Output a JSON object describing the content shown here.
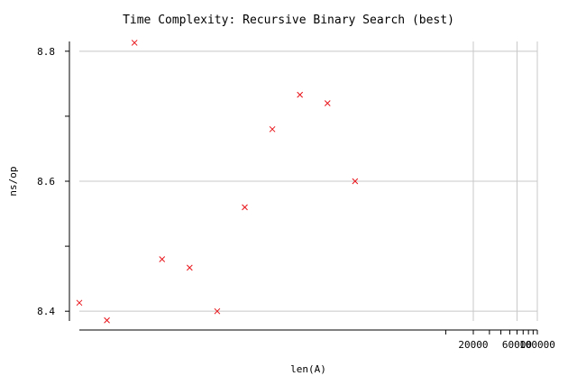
{
  "chart_data": {
    "type": "scatter",
    "title": "Time Complexity: Recursive Binary Search (best)",
    "xlabel": "len(A)",
    "ylabel": "ns/op",
    "x_scale": "log",
    "xlim": [
      1,
      100000
    ],
    "ylim": [
      8.385,
      8.815
    ],
    "grid": true,
    "x_ticks": [
      {
        "value": 20000,
        "label": "20000"
      },
      {
        "value": 60000,
        "label": "60000"
      },
      {
        "value": 100000,
        "label": "100000"
      }
    ],
    "x_minor_ticks": [
      10000,
      30000,
      40000,
      50000,
      70000,
      80000,
      90000
    ],
    "y_ticks": [
      {
        "value": 8.4,
        "label": "8.4"
      },
      {
        "value": 8.6,
        "label": "8.6"
      },
      {
        "value": 8.8,
        "label": "8.8"
      }
    ],
    "y_minor_ticks": [
      8.5,
      8.7
    ],
    "series": [
      {
        "color": "#e8141a",
        "marker": "x",
        "points": [
          {
            "x": 1,
            "y": 8.413
          },
          {
            "x": 2,
            "y": 8.386
          },
          {
            "x": 4,
            "y": 8.813
          },
          {
            "x": 8,
            "y": 8.48
          },
          {
            "x": 16,
            "y": 8.467
          },
          {
            "x": 32,
            "y": 8.4
          },
          {
            "x": 64,
            "y": 8.56
          },
          {
            "x": 128,
            "y": 8.68
          },
          {
            "x": 256,
            "y": 8.733
          },
          {
            "x": 512,
            "y": 8.72
          },
          {
            "x": 1024,
            "y": 8.6
          }
        ]
      }
    ]
  }
}
